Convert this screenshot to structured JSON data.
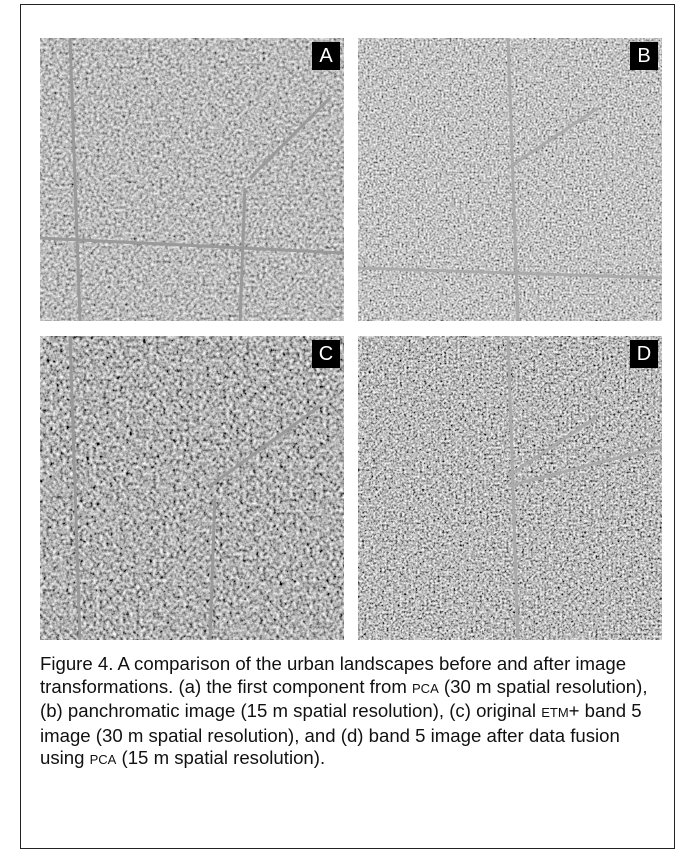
{
  "figure": {
    "panels": [
      {
        "label": "A"
      },
      {
        "label": "B"
      },
      {
        "label": "C"
      },
      {
        "label": "D"
      }
    ],
    "caption": [
      "Figure 4. A comparison of the urban landscapes before and after image transformations. (a) the first component from ",
      "PCA",
      " (30 m spatial resolution), (b) panchromatic image (15 m spatial resolution), (c) original ",
      "ETM",
      "+ band 5 image (30 m spatial resolution), and (d) band 5 image after data fusion using ",
      "PCA",
      " (15 m spatial resolution)."
    ]
  }
}
